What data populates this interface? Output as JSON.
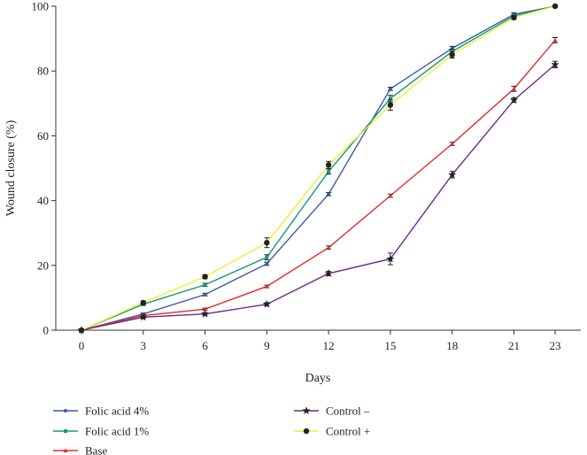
{
  "chart_data": {
    "type": "line",
    "title": "",
    "xlabel": "Days",
    "ylabel": "Wound closure (%)",
    "x": [
      0,
      3,
      6,
      9,
      12,
      15,
      18,
      21,
      23
    ],
    "x_ticks": [
      "0",
      "3",
      "6",
      "9",
      "12",
      "15",
      "18",
      "21",
      "23"
    ],
    "y_ticks": [
      "0",
      "20",
      "40",
      "60",
      "80",
      "100"
    ],
    "ylim": [
      0,
      100
    ],
    "grid": false,
    "legend_position": "bottom",
    "series": [
      {
        "name": "Folic acid 4%",
        "color": "#3a5ba8",
        "marker": "dot",
        "values": [
          0,
          5,
          11,
          20.5,
          42,
          74.5,
          87,
          97.5,
          100
        ],
        "errors": [
          0.3,
          0.3,
          0.4,
          0.5,
          0.5,
          0.5,
          0.6,
          0.5,
          0.3
        ]
      },
      {
        "name": "Folic acid 1%",
        "color": "#169a72",
        "marker": "square",
        "values": [
          0,
          8,
          14,
          22.5,
          49,
          71.5,
          86,
          97,
          100
        ],
        "errors": [
          0.3,
          0.4,
          0.5,
          0.8,
          0.8,
          1.0,
          0.7,
          0.5,
          0.3
        ]
      },
      {
        "name": "Base",
        "color": "#e8292b",
        "marker": "triangle",
        "values": [
          0,
          4.5,
          6.5,
          13.5,
          25.5,
          41.5,
          57.5,
          74.5,
          89.5
        ],
        "errors": [
          0.2,
          0.3,
          0.3,
          0.4,
          0.5,
          0.5,
          0.5,
          0.8,
          0.8
        ]
      },
      {
        "name": "Control –",
        "color": "#6b2d84",
        "marker": "star",
        "values": [
          0,
          4,
          5,
          8,
          17.5,
          22,
          48,
          71,
          82
        ],
        "errors": [
          0.2,
          0.3,
          0.4,
          0.5,
          0.7,
          1.8,
          1.0,
          0.7,
          1.0
        ]
      },
      {
        "name": "Control +",
        "color": "#eeee33",
        "marker": "circle",
        "values": [
          0,
          8.5,
          16.5,
          27,
          51,
          69.5,
          85,
          96.5,
          100
        ],
        "errors": [
          0.4,
          0.5,
          0.6,
          1.5,
          1.1,
          1.6,
          1.0,
          0.6,
          0.3
        ]
      }
    ]
  }
}
